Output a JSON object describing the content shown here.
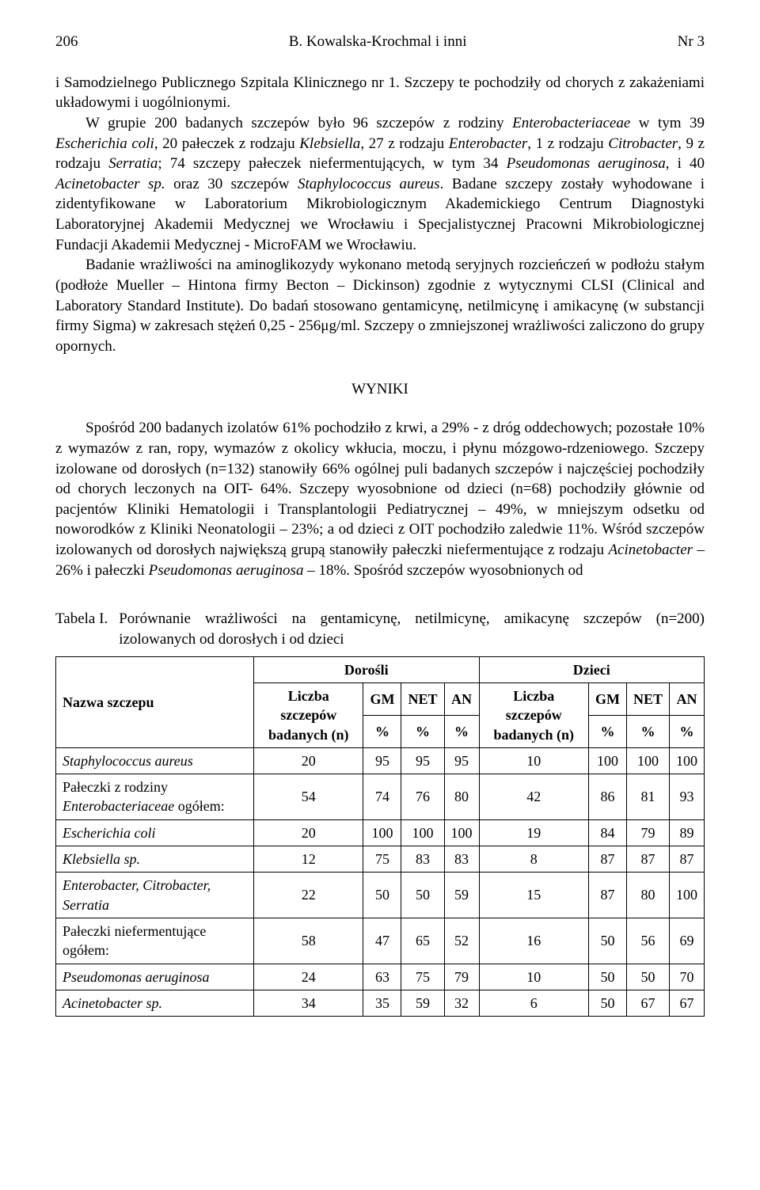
{
  "header": {
    "page_left": "206",
    "center": "B. Kowalska-Krochmal i inni",
    "page_right": "Nr 3"
  },
  "para1": "i Samodzielnego Publicznego Szpitala Klinicznego nr 1. Szczepy te pochodziły od chorych z zakażeniami układowymi i uogólnionymi.",
  "para2_a": "W grupie 200 badanych szczepów było 96 szczepów z rodziny ",
  "para2_b": "Enterobacteriaceae",
  "para2_c": " w tym 39 ",
  "para2_d": "Escherichia coli",
  "para2_e": ", 20 pałeczek z rodzaju ",
  "para2_f": "Klebsiella",
  "para2_g": ", 27 z rodzaju ",
  "para2_h": "Enterobacter",
  "para2_i": ", 1 z rodzaju ",
  "para2_j": "Citrobacter",
  "para2_k": ", 9 z rodzaju ",
  "para2_l": "Serratia",
  "para2_m": "; 74 szczepy pałeczek niefermentujących, w tym 34 ",
  "para2_n": "Pseudomonas aeruginosa",
  "para2_o": ", i 40 ",
  "para2_p": "Acinetobacter sp.",
  "para2_q": " oraz 30 szczepów ",
  "para2_r": "Staphylococcus aureus",
  "para2_s": ". Badane szczepy zostały wyhodowane i zidentyfikowane w Laboratorium Mikrobiologicznym Akademickiego Centrum Diagnostyki Laboratoryjnej Akademii Medycznej we Wrocławiu i Specjalistycznej Pracowni Mikrobiologicznej Fundacji Akademii Medycznej - MicroFAM we Wrocławiu.",
  "para3": "Badanie wrażliwości na aminoglikozydy wykonano metodą seryjnych rozcieńczeń w podłożu stałym (podłoże Mueller – Hintona firmy Becton – Dickinson) zgodnie z wytycznymi CLSI (Clinical and Laboratory Standard Institute). Do badań stosowano gentamicynę, netilmicynę i amikacynę (w substancji firmy Sigma) w zakresach stężeń 0,25 - 256μg/ml. Szczepy o zmniejszonej wrażliwości zaliczono do grupy opornych.",
  "section_results": "WYNIKI",
  "para4_a": "Spośród 200 badanych izolatów 61% pochodziło z krwi, a 29% - z dróg oddechowych; pozostałe 10% z wymazów z ran, ropy, wymazów z okolicy wkłucia, moczu, i płynu mózgowo-rdzeniowego. Szczepy izolowane od dorosłych (n=132) stanowiły 66% ogólnej puli badanych szczepów i najczęściej pochodziły od chorych leczonych na OIT- 64%. Szczepy wyosobnione od dzieci (n=68) pochodziły głównie od pacjentów Kliniki Hematologii i Transplantologii Pediatrycznej – 49%, w mniejszym odsetku od noworodków z Kliniki Neonatologii – 23%; a od dzieci z OIT pochodziło zaledwie 11%. Wśród szczepów izolowanych od dorosłych największą grupą stanowiły pałeczki niefermentujące z rodzaju ",
  "para4_b": "Acinetobacter",
  "para4_c": " – 26% i pałeczki ",
  "para4_d": "Pseudomonas aeruginosa",
  "para4_e": " – 18%. Spośród szczepów wyosobnionych od",
  "table": {
    "caption_label": "Tabela I.",
    "caption_text": "Porównanie wrażliwości na gentamicynę, netilmicynę, amikacynę szczepów (n=200) izolowanych od dorosłych i od dzieci",
    "col_nazwa": "Nazwa szczepu",
    "grp_dorosli": "Dorośli",
    "grp_dzieci": "Dzieci",
    "col_liczba": "Liczba szczepów badanych (n)",
    "col_gm": "GM",
    "col_net": "NET",
    "col_an": "AN",
    "pct": "%",
    "rows": [
      {
        "name": "Staphylococcus aureus",
        "name_italic": true,
        "d": [
          "20",
          "95",
          "95",
          "95",
          "10",
          "100",
          "100",
          "100"
        ]
      },
      {
        "name_a": "Pałeczki z rodziny ",
        "name_b": "Enterobacteriaceae",
        "name_c": " ogółem:",
        "d": [
          "54",
          "74",
          "76",
          "80",
          "42",
          "86",
          "81",
          "93"
        ]
      },
      {
        "name": "Escherichia coli",
        "name_italic": true,
        "d": [
          "20",
          "100",
          "100",
          "100",
          "19",
          "84",
          "79",
          "89"
        ]
      },
      {
        "name": "Klebsiella sp.",
        "name_italic": true,
        "d": [
          "12",
          "75",
          "83",
          "83",
          "8",
          "87",
          "87",
          "87"
        ]
      },
      {
        "name": "Enterobacter, Citrobacter, Serratia",
        "name_italic": true,
        "d": [
          "22",
          "50",
          "50",
          "59",
          "15",
          "87",
          "80",
          "100"
        ]
      },
      {
        "name": "Pałeczki niefermentujące ogółem:",
        "name_italic": false,
        "d": [
          "58",
          "47",
          "65",
          "52",
          "16",
          "50",
          "56",
          "69"
        ]
      },
      {
        "name": "Pseudomonas aeruginosa",
        "name_italic": true,
        "d": [
          "24",
          "63",
          "75",
          "79",
          "10",
          "50",
          "50",
          "70"
        ]
      },
      {
        "name": "Acinetobacter sp.",
        "name_italic": true,
        "d": [
          "34",
          "35",
          "59",
          "32",
          "6",
          "50",
          "67",
          "67"
        ]
      }
    ]
  }
}
